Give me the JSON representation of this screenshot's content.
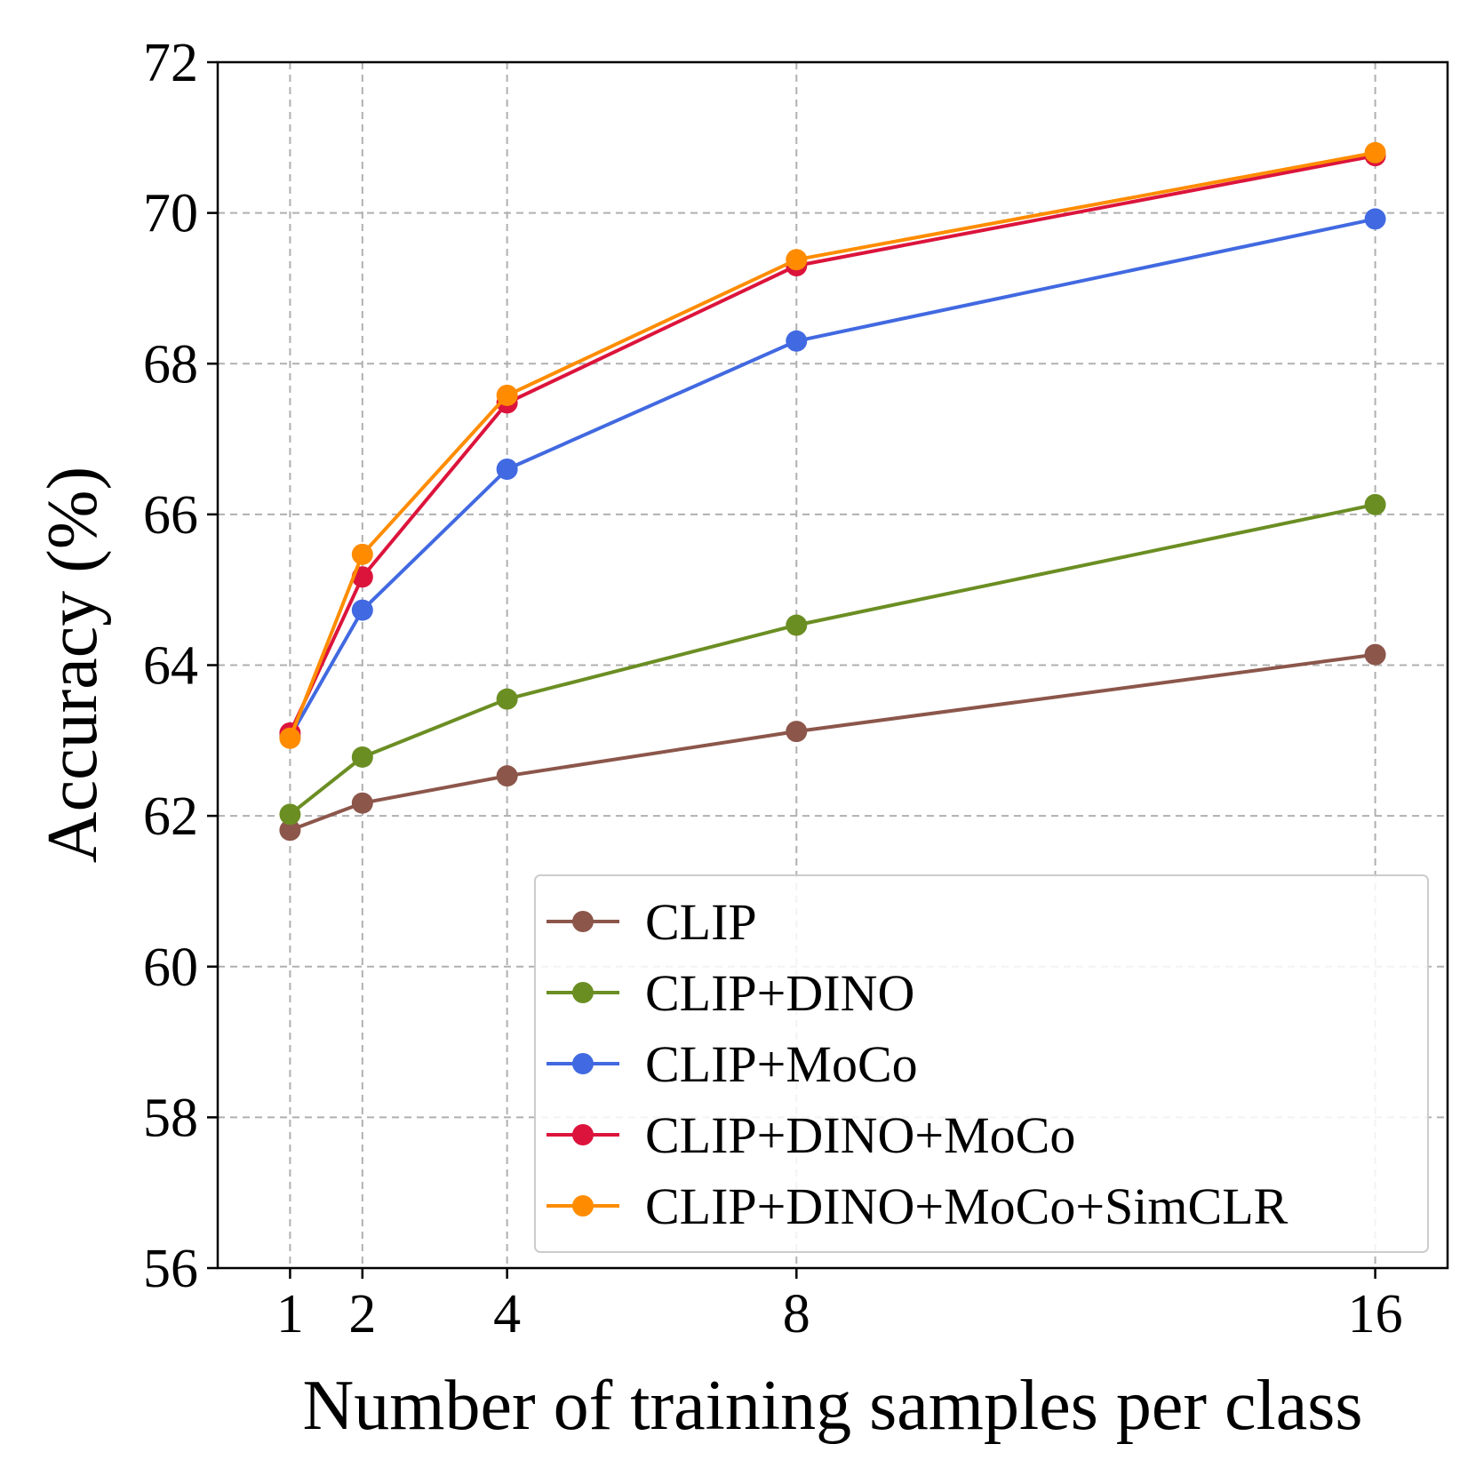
{
  "chart_data": {
    "type": "line",
    "xlabel": "Number of training samples per class",
    "ylabel": "Accuracy (%)",
    "x": [
      1,
      2,
      4,
      8,
      16
    ],
    "x_ticks": [
      "1",
      "2",
      "4",
      "8",
      "16"
    ],
    "y_ticks": [
      "56",
      "58",
      "60",
      "62",
      "64",
      "66",
      "68",
      "70",
      "72"
    ],
    "ylim": [
      56,
      72
    ],
    "xlim": [
      0.0,
      17.0
    ],
    "grid": true,
    "legend_position": "lower-right",
    "series": [
      {
        "name": "CLIP",
        "color": "#8c564b",
        "values": [
          61.81,
          62.17,
          62.53,
          63.12,
          64.14
        ]
      },
      {
        "name": "CLIP+DINO",
        "color": "#6b8e23",
        "values": [
          62.02,
          62.78,
          63.55,
          64.53,
          66.13
        ]
      },
      {
        "name": "CLIP+MoCo",
        "color": "#4169e1",
        "values": [
          63.05,
          64.73,
          66.6,
          68.3,
          69.92
        ]
      },
      {
        "name": "CLIP+DINO+MoCo",
        "color": "#dc143c",
        "values": [
          63.1,
          65.17,
          67.48,
          69.3,
          70.76
        ]
      },
      {
        "name": "CLIP+DINO+MoCo+SimCLR",
        "color": "#ff8c00",
        "values": [
          63.03,
          65.47,
          67.58,
          69.38,
          70.8
        ]
      }
    ]
  }
}
